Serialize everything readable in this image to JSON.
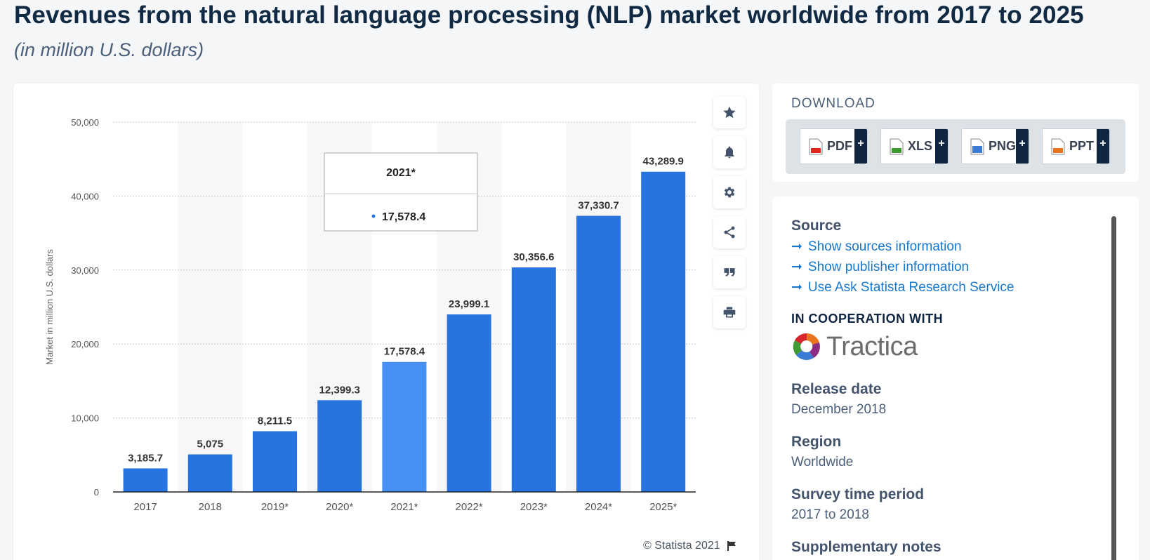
{
  "page": {
    "title": "Revenues from the natural language processing (NLP) market worldwide from 2017 to 2025",
    "subtitle": "(in million U.S. dollars)"
  },
  "chart_data": {
    "type": "bar",
    "title": "Revenues from the natural language processing (NLP) market worldwide from 2017 to 2025",
    "subtitle": "(in million U.S. dollars)",
    "xlabel": "",
    "ylabel": "Market in million U.S. dollars",
    "categories": [
      "2017",
      "2018",
      "2019*",
      "2020*",
      "2021*",
      "2022*",
      "2023*",
      "2024*",
      "2025*"
    ],
    "values": [
      3185.7,
      5075,
      8211.5,
      12399.3,
      17578.4,
      23999.1,
      30356.6,
      37330.7,
      43289.9
    ],
    "value_labels": [
      "3,185.7",
      "5,075",
      "8,211.5",
      "12,399.3",
      "17,578.4",
      "23,999.1",
      "30,356.6",
      "37,330.7",
      "43,289.9"
    ],
    "ylim": [
      0,
      50000
    ],
    "yticks": [
      0,
      10000,
      20000,
      30000,
      40000,
      50000
    ],
    "ytick_labels": [
      "0",
      "10,000",
      "20,000",
      "30,000",
      "40,000",
      "50,000"
    ],
    "grid": true,
    "highlighted_index": 4,
    "colors": {
      "bar": "#2874de",
      "bar_highlight": "#4690f3",
      "band": "#f7f7f7",
      "grid": "#c9c9c9"
    },
    "tooltip": {
      "category": "2021*",
      "value": "17,578.4"
    }
  },
  "toolbar": {
    "icons": [
      "star-icon",
      "bell-icon",
      "gear-icon",
      "share-icon",
      "quote-icon",
      "print-icon"
    ]
  },
  "footer": {
    "copyright": "© Statista 2021",
    "flag_icon": "flag-icon"
  },
  "download": {
    "title": "DOWNLOAD",
    "buttons": [
      {
        "label": "PDF",
        "plus": "+",
        "icon": "pdf-file-icon",
        "color": "#e0261b"
      },
      {
        "label": "XLS",
        "plus": "+",
        "icon": "xls-file-icon",
        "color": "#3d9b2f"
      },
      {
        "label": "PNG",
        "plus": "+",
        "icon": "png-file-icon",
        "color": "#3a7bd5"
      },
      {
        "label": "PPT",
        "plus": "+",
        "icon": "ppt-file-icon",
        "color": "#e8731d"
      }
    ]
  },
  "info": {
    "source_heading": "Source",
    "links": [
      "Show sources information",
      "Show publisher information",
      "Use Ask Statista Research Service"
    ],
    "cooperation_heading": "IN COOPERATION WITH",
    "cooperation_name": "Tractica",
    "release_heading": "Release date",
    "release_value": "December 2018",
    "region_heading": "Region",
    "region_value": "Worldwide",
    "period_heading": "Survey time period",
    "period_value": "2017 to 2018",
    "notes_heading": "Supplementary notes"
  }
}
